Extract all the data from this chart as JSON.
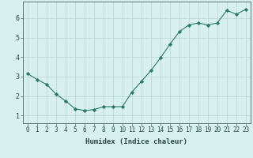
{
  "x": [
    0,
    1,
    2,
    3,
    4,
    5,
    6,
    7,
    8,
    9,
    10,
    11,
    12,
    13,
    14,
    15,
    16,
    17,
    18,
    19,
    20,
    21,
    22,
    23
  ],
  "y": [
    3.15,
    2.85,
    2.6,
    2.1,
    1.75,
    1.35,
    1.25,
    1.3,
    1.45,
    1.45,
    1.45,
    2.2,
    2.75,
    3.3,
    3.95,
    4.65,
    5.3,
    5.65,
    5.75,
    5.65,
    5.75,
    6.4,
    6.2,
    6.45
  ],
  "line_color": "#2a7a6a",
  "marker": "D",
  "marker_size": 2.2,
  "bg_color": "#d8f0f0",
  "grid_color": "#b8d4d4",
  "xlabel": "Humidex (Indice chaleur)",
  "xlim": [
    -0.5,
    23.5
  ],
  "ylim": [
    0.6,
    6.85
  ],
  "yticks": [
    1,
    2,
    3,
    4,
    5,
    6
  ],
  "xticks": [
    0,
    1,
    2,
    3,
    4,
    5,
    6,
    7,
    8,
    9,
    10,
    11,
    12,
    13,
    14,
    15,
    16,
    17,
    18,
    19,
    20,
    21,
    22,
    23
  ],
  "tick_color": "#2a4848",
  "axis_color": "#4a6060",
  "tick_fontsize": 5.5,
  "xlabel_fontsize": 6.5,
  "linewidth": 0.8
}
